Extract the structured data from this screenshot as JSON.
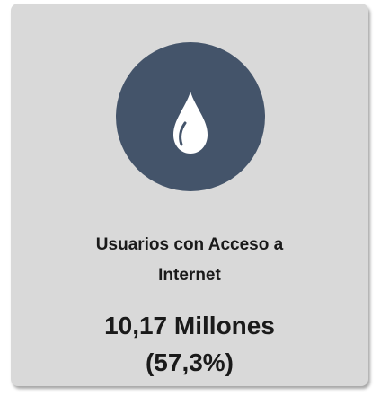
{
  "card": {
    "label": "Usuarios con Acceso a Internet",
    "value": "10,17 Millones",
    "share": "(57,3%)"
  }
}
